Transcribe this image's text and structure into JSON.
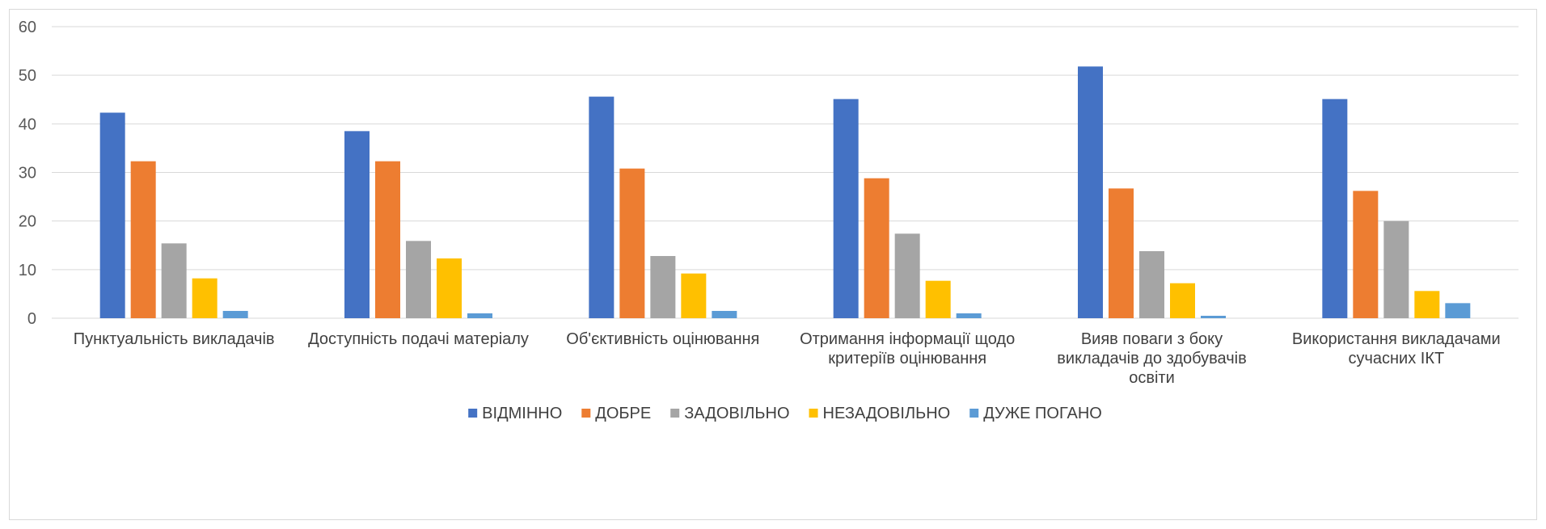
{
  "chart_data": {
    "type": "bar",
    "categories": [
      [
        "Пунктуальність викладачів"
      ],
      [
        "Доступність подачі матеріалу"
      ],
      [
        "Об'єктивність оцінювання"
      ],
      [
        "Отримання інформації щодо",
        "критеріїв оцінювання"
      ],
      [
        "Вияв поваги з боку",
        "викладачів до здобувачів",
        "освіти"
      ],
      [
        "Використання викладачами",
        "сучасних ІКТ"
      ]
    ],
    "series": [
      {
        "name": "ВІДМІННО",
        "color": "#4472C4",
        "values": [
          42.3,
          38.5,
          45.6,
          45.1,
          51.8,
          45.1
        ]
      },
      {
        "name": "ДОБРЕ",
        "color": "#ED7D31",
        "values": [
          32.3,
          32.3,
          30.8,
          28.8,
          26.7,
          26.2
        ]
      },
      {
        "name": "ЗАДОВІЛЬНО",
        "color": "#A5A5A5",
        "values": [
          15.4,
          15.9,
          12.8,
          17.4,
          13.8,
          20.0
        ]
      },
      {
        "name": "НЕЗАДОВІЛЬНО",
        "color": "#FFC000",
        "values": [
          8.2,
          12.3,
          9.2,
          7.7,
          7.2,
          5.6
        ]
      },
      {
        "name": "ДУЖЕ ПОГАНО",
        "color": "#5B9BD5",
        "values": [
          1.5,
          1.0,
          1.5,
          1.0,
          0.5,
          3.1
        ]
      }
    ],
    "ylim": [
      0,
      60
    ],
    "yticks": [
      0,
      10,
      20,
      30,
      40,
      50,
      60
    ],
    "grid": true,
    "legend_position": "bottom",
    "gridline_color": "#d9d9d9"
  }
}
